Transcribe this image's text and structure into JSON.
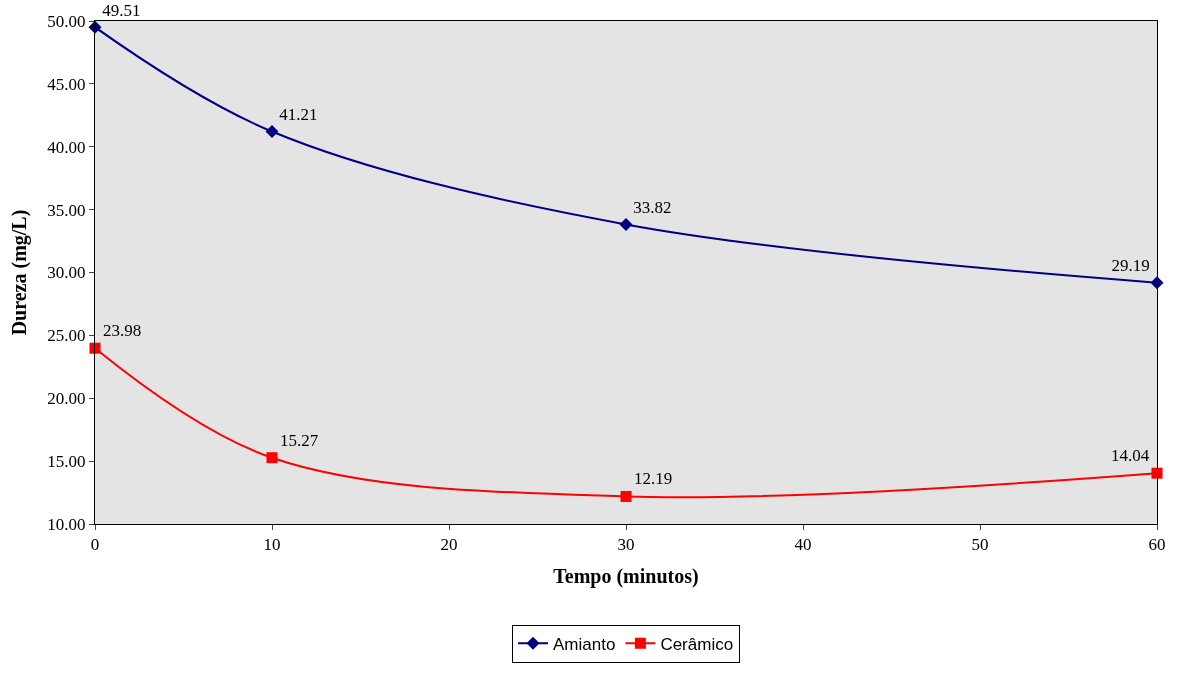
{
  "chart_data": {
    "type": "line",
    "xlabel": "Tempo (minutos)",
    "ylabel": "Dureza (mg/L)",
    "x": [
      0,
      10,
      30,
      60
    ],
    "series": [
      {
        "name": "Amianto",
        "color": "#000080",
        "values": [
          49.51,
          41.21,
          33.82,
          29.19
        ],
        "marker": "diamond"
      },
      {
        "name": "Cerâmico",
        "color": "#ff0000",
        "values": [
          23.98,
          15.27,
          12.19,
          14.04
        ],
        "marker": "square"
      }
    ],
    "xlim": [
      0,
      60
    ],
    "xticks": [
      0,
      10,
      20,
      30,
      40,
      50,
      60
    ],
    "ylim": [
      10,
      50
    ],
    "yticks": [
      {
        "value": 10,
        "label": "10.00"
      },
      {
        "value": 15,
        "label": "15.00"
      },
      {
        "value": 20,
        "label": "20.00"
      },
      {
        "value": 25,
        "label": "25.00"
      },
      {
        "value": 30,
        "label": "30.00"
      },
      {
        "value": 35,
        "label": "35.00"
      },
      {
        "value": 40,
        "label": "40.00"
      },
      {
        "value": 45,
        "label": "45.00"
      },
      {
        "value": 50,
        "label": "50.00"
      }
    ],
    "data_labels": true,
    "legend": "bottom",
    "grid": false,
    "line_style": "solid"
  }
}
